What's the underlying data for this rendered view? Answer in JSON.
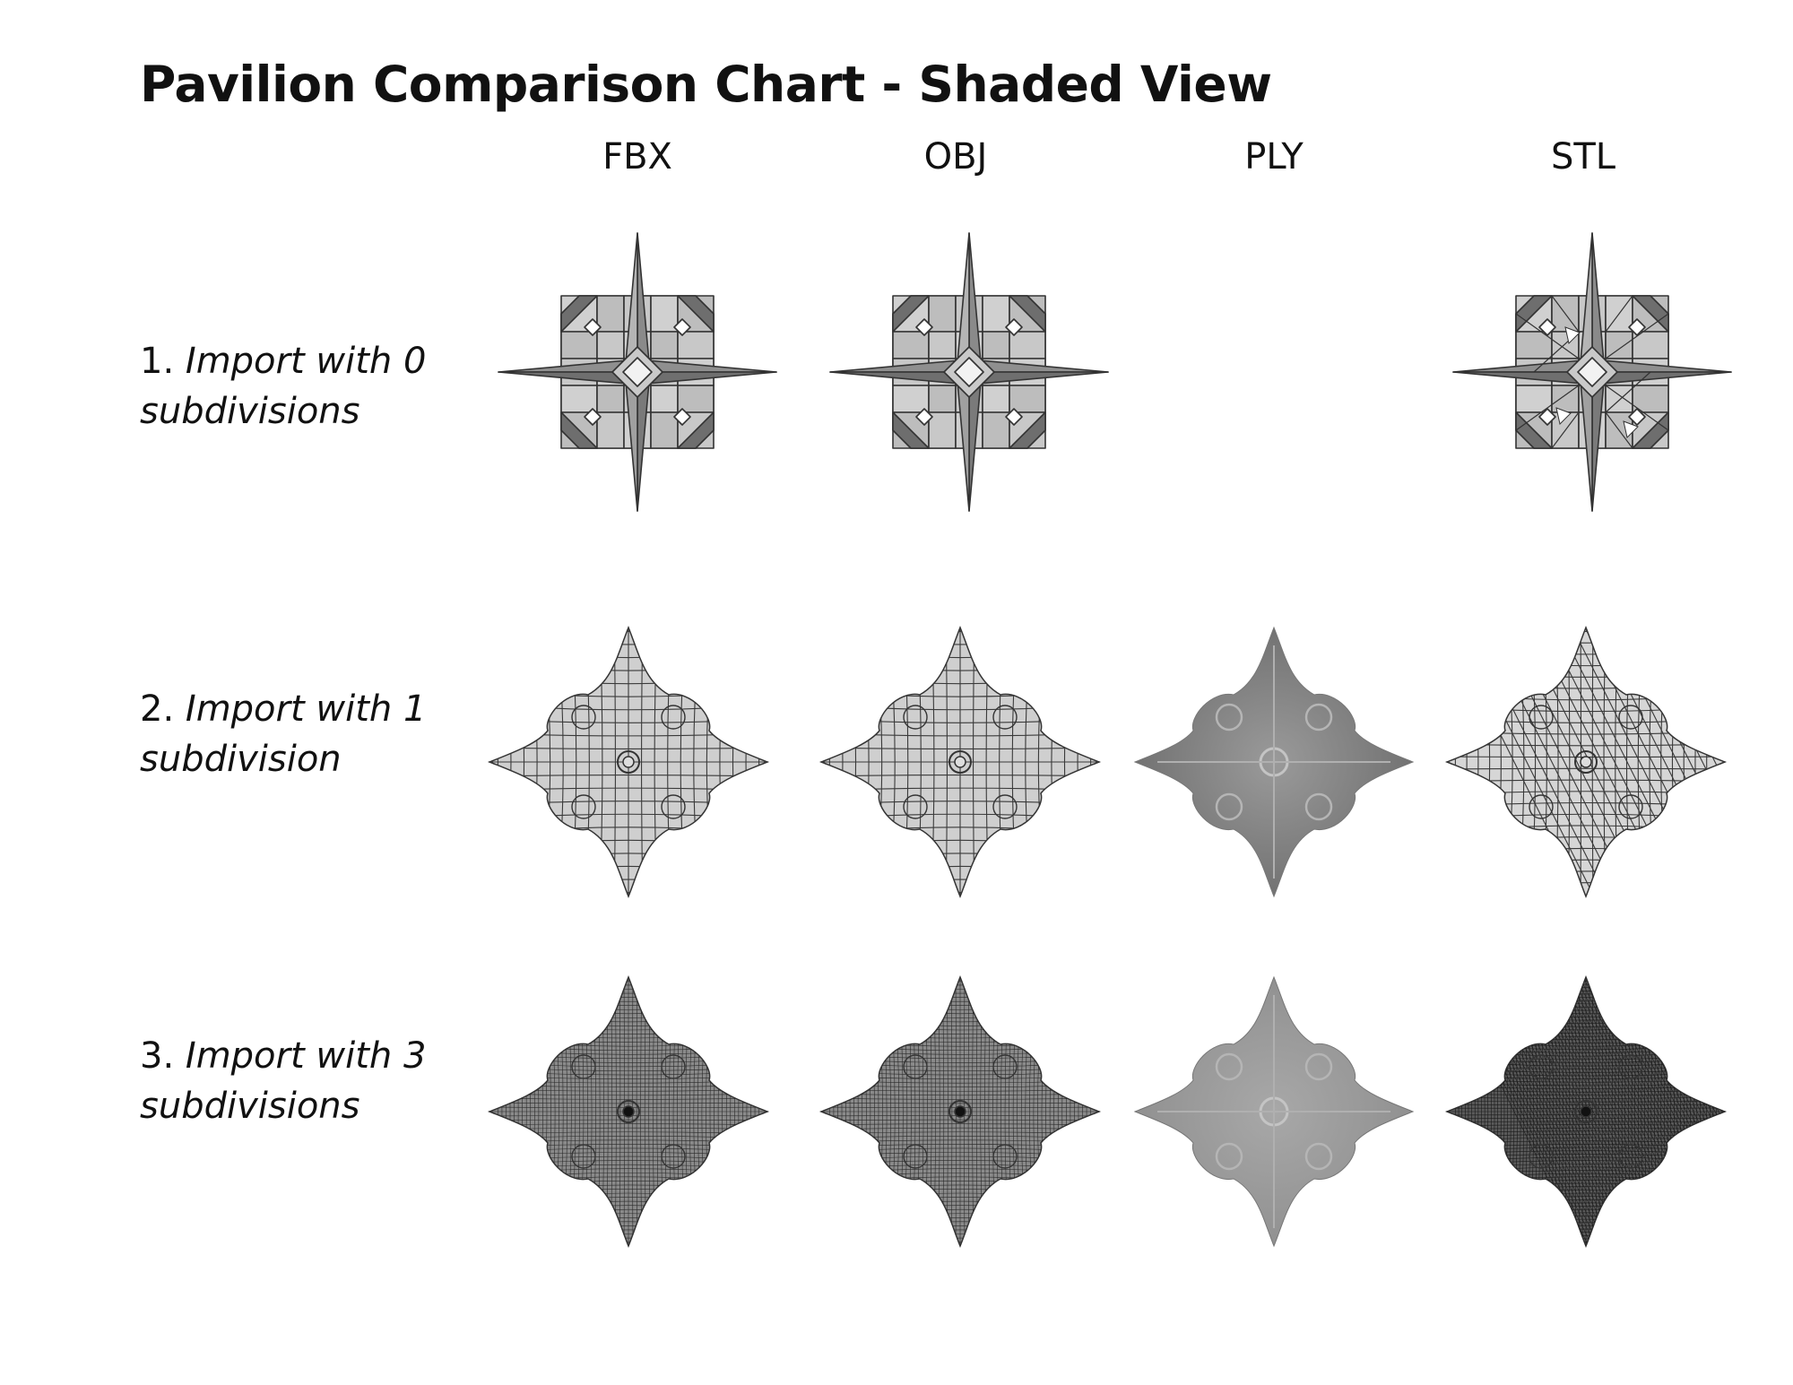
{
  "title": "Pavilion Comparison Chart - Shaded View",
  "columns": [
    "FBX",
    "OBJ",
    "PLY",
    "STL"
  ],
  "rows": [
    {
      "number": "1.",
      "line1": "Import with 0",
      "line2": "subdivisions"
    },
    {
      "number": "2.",
      "line1": "Import with 1",
      "line2": "subdivision"
    },
    {
      "number": "3.",
      "line1": "Import with 3",
      "line2": "subdivisions"
    }
  ],
  "cells": [
    [
      "star",
      "star",
      "empty",
      "star-tri"
    ],
    [
      "quad-mesh",
      "quad-mesh",
      "smooth",
      "tri-mesh"
    ],
    [
      "dense-mesh",
      "dense-mesh",
      "smooth",
      "dense-mesh-dark"
    ]
  ],
  "colors": {
    "text": "#111111",
    "shade_light": "#d0d0d0",
    "shade_mid": "#a9a9a9",
    "shade_dark": "#6e6e6e",
    "edge": "#333333"
  }
}
